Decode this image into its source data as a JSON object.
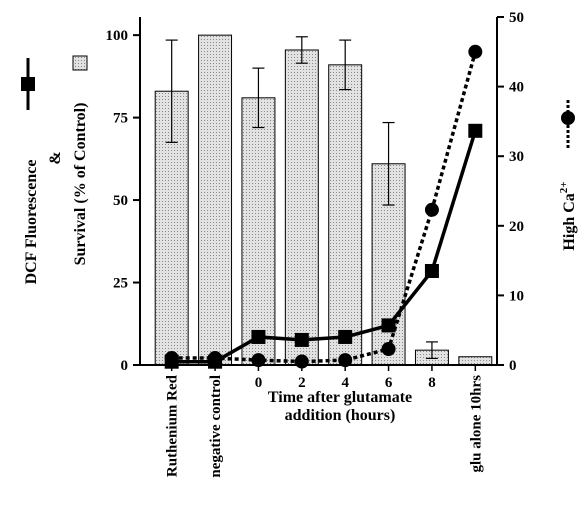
{
  "chart_data": {
    "type": "bar-line",
    "categories": [
      "Ruthenium Red",
      "negative control",
      "0",
      "2",
      "4",
      "6",
      "8",
      "glu alone 10hrs"
    ],
    "ylabel_dcf": "DCF Fluorescence",
    "ylabel_amp": "&",
    "ylabel_survival": "Survival (% of Control)",
    "y2label": [
      "High Ca",
      "2+"
    ],
    "xlabel": [
      "Time after glutamate",
      "addition (hours)"
    ],
    "ylim": [
      0,
      105.5
    ],
    "yticks": [
      0,
      25,
      50,
      75,
      100
    ],
    "y2lim": [
      0,
      50
    ],
    "y2ticks": [
      0,
      10,
      20,
      30,
      40,
      50
    ],
    "series": [
      {
        "type": "bar",
        "color": "#d0d0d0",
        "values": [
          83,
          100,
          81,
          95.5,
          91,
          61,
          4.5,
          2.5
        ],
        "errors": [
          15.5,
          null,
          9,
          4,
          7.5,
          12.5,
          2.5,
          null
        ]
      },
      {
        "type": "line",
        "color": "#000000",
        "marker": "square",
        "dash": false,
        "values": [
          1,
          1,
          8.5,
          7.6,
          8.5,
          12,
          28.5,
          71
        ]
      },
      {
        "type": "line",
        "color": "#000000",
        "marker": "circle",
        "dash": true,
        "axis": "y2",
        "values": [
          1,
          1,
          0.7,
          0.5,
          0.7,
          2.3,
          22.3,
          45
        ]
      }
    ]
  }
}
